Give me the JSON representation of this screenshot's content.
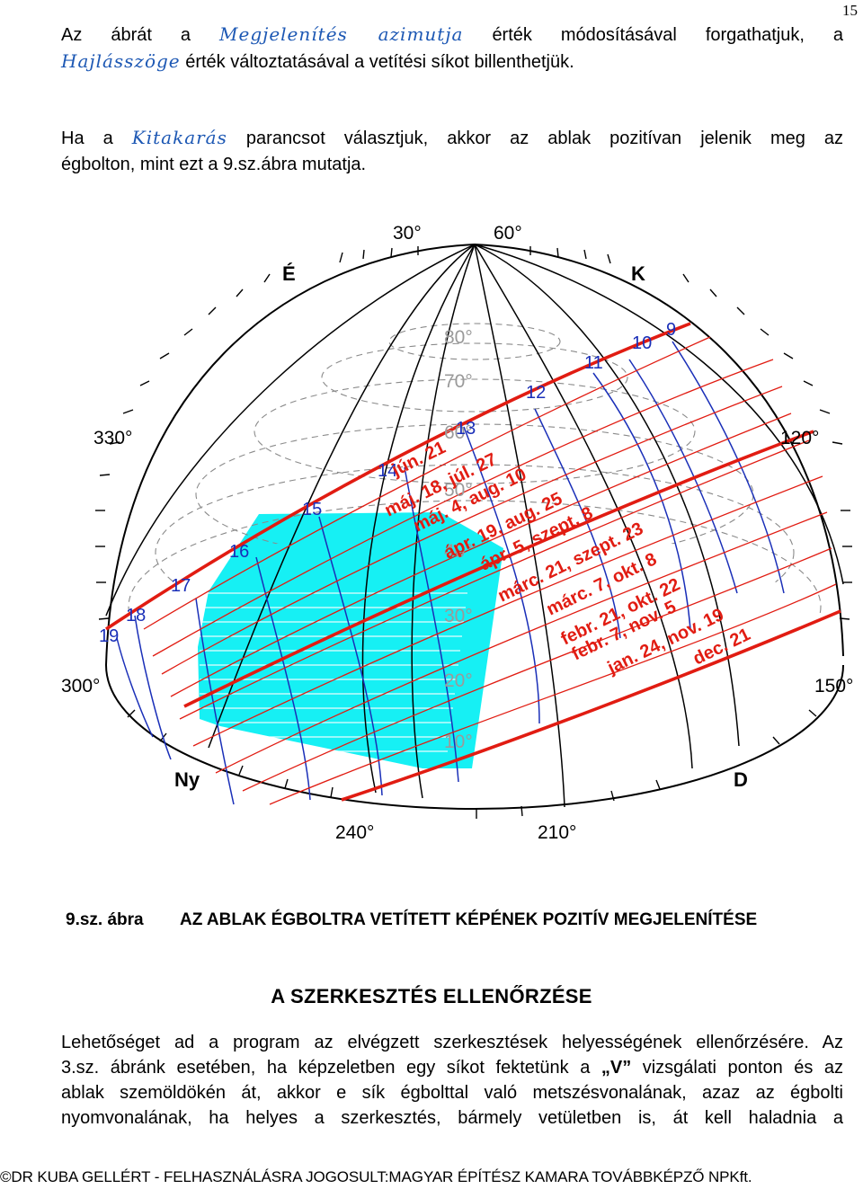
{
  "page_number": "15",
  "paragraph1": {
    "t1": "Az ábrát a",
    "cmd1": "Megjelenítés azimutja",
    "t2": "érték módosításával forgathatjuk, a",
    "cmd2": "Hajlásszöge",
    "t3": "érték változtatásával a vetítési síkot billenthetjük."
  },
  "paragraph2": {
    "t1": "Ha a",
    "cmd1": "Kitakarás",
    "t2": "parancsot választjuk, akkor az ablak pozitívan jelenik meg az",
    "t3": "égbolton, mint ezt a 9.sz.ábra mutatja."
  },
  "figure": {
    "azimuth_labels": [
      "30°",
      "60°",
      "330°",
      "120°",
      "300°",
      "150°",
      "240°",
      "210°"
    ],
    "direction_labels": {
      "north": "É",
      "east": "K",
      "west": "Ny",
      "south": "D"
    },
    "altitude_labels": [
      "80°",
      "70°",
      "60°",
      "50°",
      "40°",
      "30°",
      "20°",
      "10°"
    ],
    "hour_labels": [
      "9",
      "10",
      "11",
      "12",
      "13",
      "14",
      "15",
      "16",
      "17",
      "18",
      "19"
    ],
    "date_labels": [
      "jún. 21",
      "máj. 18, júl. 27",
      "máj. 4, aug. 10",
      "ápr. 19, aug. 25",
      "ápr. 5, szept. 8",
      "márc. 21, szept. 23",
      "márc. 7, okt. 8",
      "febr. 21, okt. 22",
      "febr. 7, nov. 5",
      "jan. 24, nov. 19",
      "dec. 21"
    ],
    "colors": {
      "sun_path": "#e11c12",
      "hour_line": "#1a2fb8",
      "window": "#16f0f4",
      "grid": "#888888",
      "outline": "#000000"
    }
  },
  "caption": {
    "number": "9.sz. ábra",
    "title": "AZ ABLAK ÉGBOLTRA VETÍTETT KÉPÉNEK POZITÍV MEGJELENÍTÉSE"
  },
  "section_heading": "A SZERKESZTÉS ELLENŐRZÉSE",
  "body": {
    "line1": "Lehetőséget ad a program az elvégzett szerkesztések helyességének ellenőrzésére. Az",
    "line2a": "3.sz. ábránk esetében, ha képzeletben egy síkot fektetünk a",
    "line2b": "„V”",
    "line2c": "vizsgálati ponton és az",
    "line3": "ablak szemöldökén át, akkor e sík égbolttal való metszésvonalának, azaz az égbolti",
    "line4": "nyomvonalának, ha helyes a szerkesztés, bármely vetületben is, át kell haladnia a"
  },
  "footer": "©DR KUBA GELLÉRT - FELHASZNÁLÁSRA JOGOSULT:MAGYAR ÉPÍTÉSZ KAMARA TOVÁBBKÉPZŐ NPKft."
}
